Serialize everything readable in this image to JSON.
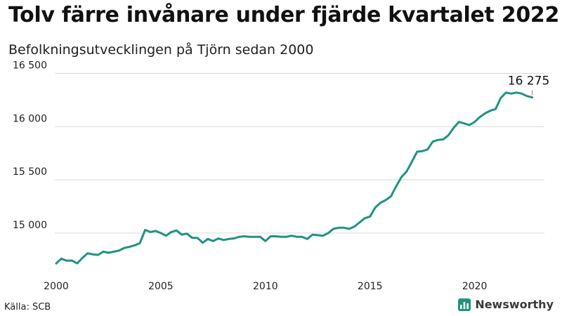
{
  "header": {
    "title": "Tolv färre invånare under fjärde kvartalet 2022",
    "subtitle": "Befolkningsutvecklingen på Tjörn sedan 2000"
  },
  "footer": {
    "source": "Källa: SCB",
    "brand": "Newsworthy",
    "brand_icon": "bar-chart-icon"
  },
  "colors": {
    "line": "#1e9480",
    "grid": "#d9d9d9",
    "brand": "#1e9480"
  },
  "chart_data": {
    "type": "line",
    "title": "Tolv färre invånare under fjärde kvartalet 2022",
    "subtitle": "Befolkningsutvecklingen på Tjörn sedan 2000",
    "x_axis": {
      "min": 2000,
      "max": 2023,
      "ticks": [
        2000,
        2005,
        2010,
        2015,
        2020
      ],
      "tick_labels": [
        "2000",
        "2005",
        "2010",
        "2015",
        "2020"
      ]
    },
    "y_axis": {
      "min": 14630,
      "max": 16530,
      "ticks": [
        15000,
        15500,
        16000,
        16500
      ],
      "tick_labels": [
        "15 000",
        "15 500",
        "16 000",
        "16 500"
      ]
    },
    "grid": "horizontal",
    "end_label": "16 275",
    "series": [
      {
        "name": "",
        "x": [
          2000.0,
          2000.25,
          2000.5,
          2000.75,
          2001.0,
          2001.25,
          2001.5,
          2001.75,
          2002.0,
          2002.25,
          2002.5,
          2002.75,
          2003.0,
          2003.25,
          2003.5,
          2003.75,
          2004.0,
          2004.25,
          2004.5,
          2004.75,
          2005.0,
          2005.25,
          2005.5,
          2005.75,
          2006.0,
          2006.25,
          2006.5,
          2006.75,
          2007.0,
          2007.25,
          2007.5,
          2007.75,
          2008.0,
          2008.25,
          2008.5,
          2008.75,
          2009.0,
          2009.25,
          2009.5,
          2009.75,
          2010.0,
          2010.25,
          2010.5,
          2010.75,
          2011.0,
          2011.25,
          2011.5,
          2011.75,
          2012.0,
          2012.25,
          2012.5,
          2012.75,
          2013.0,
          2013.25,
          2013.5,
          2013.75,
          2014.0,
          2014.25,
          2014.5,
          2014.75,
          2015.0,
          2015.25,
          2015.5,
          2015.75,
          2016.0,
          2016.25,
          2016.5,
          2016.75,
          2017.0,
          2017.25,
          2017.5,
          2017.75,
          2018.0,
          2018.25,
          2018.5,
          2018.75,
          2019.0,
          2019.25,
          2019.5,
          2019.75,
          2020.0,
          2020.25,
          2020.5,
          2020.75,
          2021.0,
          2021.25,
          2021.5,
          2021.75,
          2022.0,
          2022.25,
          2022.5,
          2022.75
        ],
        "values": [
          14715,
          14760,
          14740,
          14742,
          14715,
          14765,
          14810,
          14800,
          14795,
          14825,
          14815,
          14825,
          14835,
          14860,
          14870,
          14885,
          14905,
          15030,
          15010,
          15020,
          15000,
          14975,
          15010,
          15025,
          14985,
          14995,
          14955,
          14955,
          14910,
          14945,
          14925,
          14950,
          14935,
          14945,
          14950,
          14965,
          14970,
          14965,
          14965,
          14965,
          14925,
          14970,
          14970,
          14965,
          14965,
          14975,
          14965,
          14965,
          14945,
          14985,
          14980,
          14975,
          15000,
          15040,
          15050,
          15050,
          15040,
          15060,
          15100,
          15140,
          15155,
          15240,
          15285,
          15310,
          15345,
          15440,
          15525,
          15580,
          15670,
          15765,
          15770,
          15785,
          15860,
          15875,
          15880,
          15920,
          15990,
          16045,
          16030,
          16015,
          16045,
          16090,
          16125,
          16150,
          16165,
          16270,
          16320,
          16310,
          16320,
          16310,
          16287,
          16275
        ]
      }
    ]
  }
}
